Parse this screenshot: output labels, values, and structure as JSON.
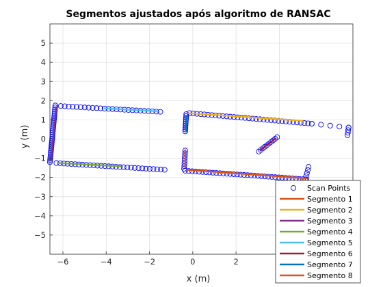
{
  "chart_data": {
    "type": "scatter",
    "title": "Segmentos ajustados após algoritmo de RANSAC",
    "xlabel": "x (m)",
    "ylabel": "y (m)",
    "xlim": [
      -6.6,
      7.4
    ],
    "ylim": [
      -6.0,
      6.0
    ],
    "xticks": [
      -6,
      -4,
      -2,
      0,
      2,
      4
    ],
    "yticks": [
      -5,
      -4,
      -3,
      -2,
      -1,
      0,
      1,
      2,
      3,
      4,
      5
    ],
    "grid": true,
    "legend_position": "bottom-right",
    "scan_points": {
      "name": "Scan Points",
      "color": "#0000ff",
      "clusters": [
        {
          "from": [
            -6.1,
            1.72
          ],
          "to": [
            -1.5,
            1.42
          ],
          "n": 26
        },
        {
          "from": [
            -6.6,
            -1.2
          ],
          "to": [
            -6.35,
            1.75
          ],
          "n": 30
        },
        {
          "from": [
            -6.3,
            -1.25
          ],
          "to": [
            -1.3,
            -1.6
          ],
          "n": 30
        },
        {
          "from": [
            -0.35,
            -0.6
          ],
          "to": [
            -0.4,
            -1.55
          ],
          "n": 8
        },
        {
          "from": [
            -0.35,
            0.4
          ],
          "to": [
            -0.3,
            1.3
          ],
          "n": 10
        },
        {
          "from": [
            -0.15,
            1.35
          ],
          "to": [
            5.5,
            0.8
          ],
          "n": 34
        },
        {
          "from": [
            5.5,
            0.8
          ],
          "to": [
            7.2,
            0.6
          ],
          "n": 5
        },
        {
          "from": [
            7.2,
            0.6
          ],
          "to": [
            7.15,
            0.2
          ],
          "n": 4
        },
        {
          "from": [
            3.05,
            -0.65
          ],
          "to": [
            3.9,
            0.1
          ],
          "n": 10
        },
        {
          "from": [
            -0.35,
            -1.65
          ],
          "to": [
            5.25,
            -2.1
          ],
          "n": 36
        },
        {
          "from": [
            5.2,
            -2.1
          ],
          "to": [
            5.35,
            -1.45
          ],
          "n": 5
        }
      ]
    },
    "series": [
      {
        "name": "Segmento 1",
        "color": "#d95319",
        "x": [
          -0.3,
          5.3
        ],
        "y": [
          -1.6,
          -2.05
        ]
      },
      {
        "name": "Segmento 2",
        "color": "#edb120",
        "x": [
          -0.2,
          5.1
        ],
        "y": [
          1.35,
          0.95
        ]
      },
      {
        "name": "Segmento 3",
        "color": "#7e2f8e",
        "x": [
          -6.55,
          -6.3
        ],
        "y": [
          -1.15,
          1.7
        ]
      },
      {
        "name": "Segmento 4",
        "color": "#77ac30",
        "x": [
          -6.2,
          -3.3
        ],
        "y": [
          -1.25,
          -1.42
        ]
      },
      {
        "name": "Segmento 5",
        "color": "#4dbeee",
        "x": [
          -4.1,
          -1.6
        ],
        "y": [
          1.6,
          1.45
        ]
      },
      {
        "name": "Segmento 6",
        "color": "#a2142f",
        "x": [
          3.1,
          3.85
        ],
        "y": [
          -0.6,
          0.05
        ]
      },
      {
        "name": "Segmento 7",
        "color": "#0072bd",
        "x": [
          -0.3,
          -0.3
        ],
        "y": [
          0.35,
          1.25
        ]
      },
      {
        "name": "Segmento 8",
        "color": "#d95319",
        "x": [
          -0.35,
          -0.35
        ],
        "y": [
          -0.55,
          -1.5
        ]
      }
    ]
  }
}
